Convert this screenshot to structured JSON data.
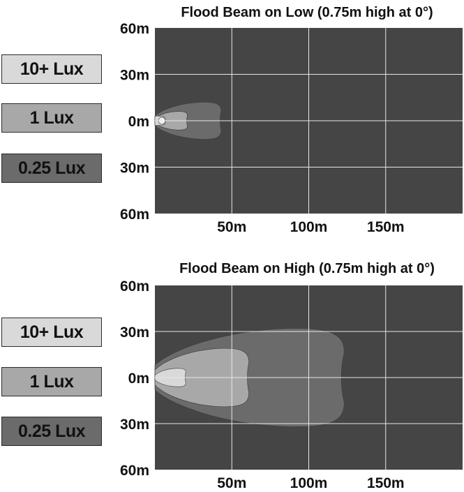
{
  "colors": {
    "plot_bg": "#454545",
    "grid": "#e8e8e8",
    "lux_10": "#d9d9d9",
    "lux_1": "#a8a8a8",
    "lux_025": "#6b6b6b"
  },
  "chart_data": [
    {
      "type": "area",
      "title": "Flood Beam on Low (0.75m high at 0°)",
      "x_ticks": [
        "50m",
        "100m",
        "150m"
      ],
      "x_tick_values": [
        50,
        100,
        150
      ],
      "y_ticks": [
        "60m",
        "30m",
        "0m",
        "30m",
        "60m"
      ],
      "y_tick_values": [
        60,
        30,
        0,
        -30,
        -60
      ],
      "xlim": [
        0,
        200
      ],
      "ylim": [
        -60,
        60
      ],
      "grid": true,
      "legend": {
        "placement": "left",
        "entries": [
          "10+ Lux",
          "1 Lux",
          "0.25 Lux"
        ]
      },
      "series": [
        {
          "name": "0.25 Lux",
          "reach_m": 43,
          "half_width_m": 12
        },
        {
          "name": "1 Lux",
          "reach_m": 21,
          "half_width_m": 6
        },
        {
          "name": "10+ Lux",
          "reach_m": 7,
          "half_width_m": 3
        }
      ]
    },
    {
      "type": "area",
      "title": "Flood Beam on High (0.75m high at 0°)",
      "x_ticks": [
        "50m",
        "100m",
        "150m"
      ],
      "x_tick_values": [
        50,
        100,
        150
      ],
      "y_ticks": [
        "60m",
        "30m",
        "0m",
        "30m",
        "60m"
      ],
      "y_tick_values": [
        60,
        30,
        0,
        -30,
        -60
      ],
      "xlim": [
        0,
        200
      ],
      "ylim": [
        -60,
        60
      ],
      "grid": true,
      "legend": {
        "placement": "left",
        "entries": [
          "10+ Lux",
          "1 Lux",
          "0.25 Lux"
        ]
      },
      "series": [
        {
          "name": "0.25 Lux",
          "reach_m": 123,
          "half_width_m": 32
        },
        {
          "name": "1 Lux",
          "reach_m": 61,
          "half_width_m": 19
        },
        {
          "name": "10+ Lux",
          "reach_m": 20,
          "half_width_m": 6
        }
      ]
    }
  ]
}
